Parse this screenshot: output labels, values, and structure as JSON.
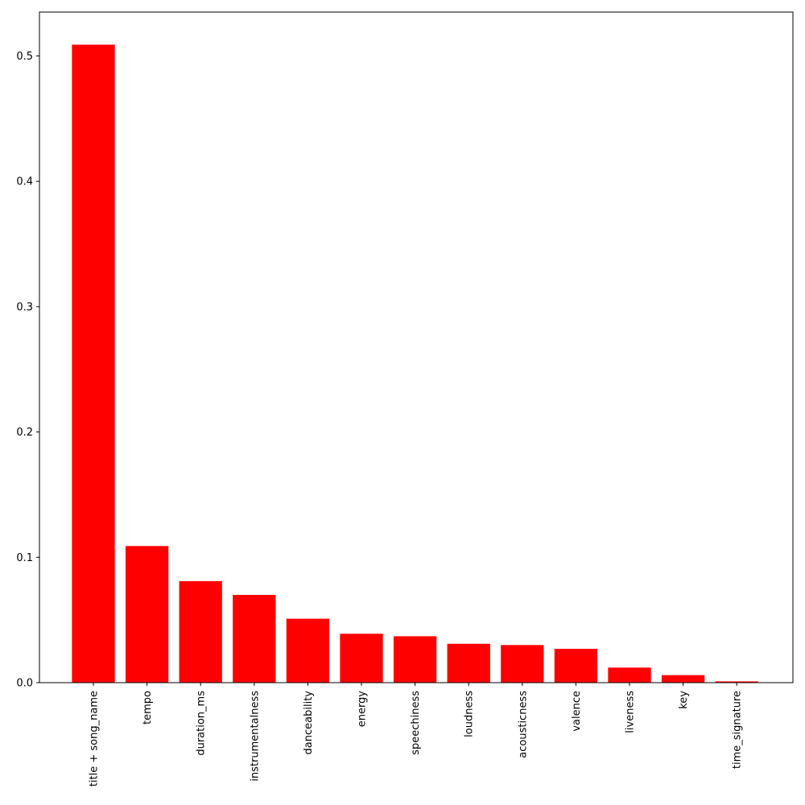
{
  "chart_data": {
    "type": "bar",
    "categories": [
      "title + song_name",
      "tempo",
      "duration_ms",
      "instrumentalness",
      "danceability",
      "energy",
      "speechiness",
      "loudness",
      "acousticness",
      "valence",
      "liveness",
      "key",
      "time_signature"
    ],
    "values": [
      0.509,
      0.109,
      0.081,
      0.07,
      0.051,
      0.039,
      0.037,
      0.031,
      0.03,
      0.027,
      0.012,
      0.006,
      0.001
    ],
    "color": "#ff0000",
    "ylim": [
      0,
      0.535
    ],
    "yticks": [
      {
        "value": 0,
        "label": "0.0"
      },
      0.1,
      0.2,
      0.3,
      0.4,
      0.5
    ],
    "grid": false
  }
}
